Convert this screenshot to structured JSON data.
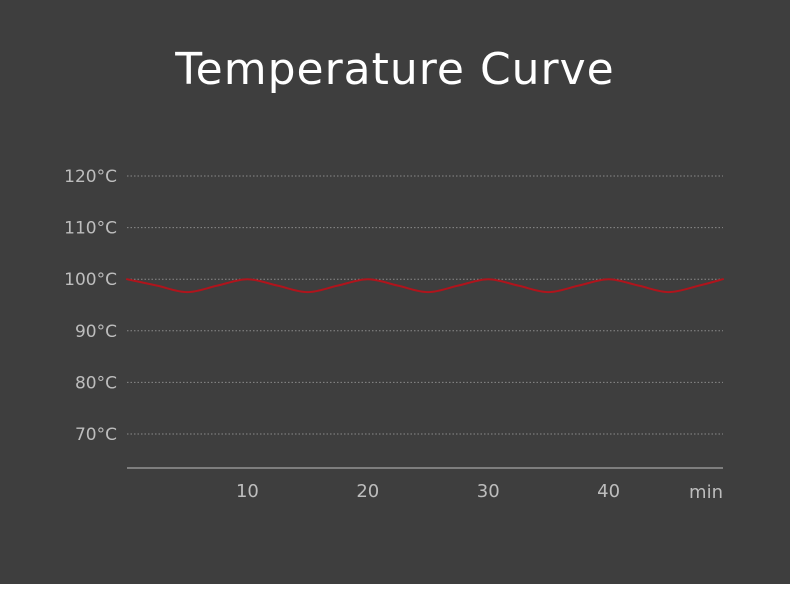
{
  "title": "Temperature Curve",
  "chart_data": {
    "type": "line",
    "title": "Temperature Curve",
    "xlabel": "min",
    "ylabel": "",
    "x_unit_label": "min",
    "y_tick_labels": [
      "120°C",
      "110°C",
      "100°C",
      "90°C",
      "80°C",
      "70°C"
    ],
    "y_ticks": [
      120,
      110,
      100,
      90,
      80,
      70
    ],
    "x_tick_labels": [
      "10",
      "20",
      "30",
      "40"
    ],
    "x_ticks": [
      10,
      20,
      30,
      40
    ],
    "xlim": [
      0,
      49.5
    ],
    "ylim": [
      63.5,
      120
    ],
    "grid": true,
    "series": [
      {
        "color": "#b0141c",
        "x": [
          0,
          2.5,
          5,
          7.5,
          10,
          12.5,
          15,
          17.5,
          20,
          22.5,
          25,
          27.5,
          30,
          32.5,
          35,
          37.5,
          40,
          42.5,
          45,
          47.5,
          49.5
        ],
        "y": [
          100,
          98.75,
          97.5,
          98.75,
          100,
          98.75,
          97.5,
          98.75,
          100,
          98.75,
          97.5,
          98.75,
          100,
          98.75,
          97.5,
          98.75,
          100,
          98.75,
          97.5,
          98.75,
          100
        ]
      }
    ]
  },
  "colors": {
    "background": "#3e3e3e",
    "gridline": "#8a8a8a",
    "axis": "#bdbdbd",
    "curve": "#b0141c",
    "title": "#ffffff",
    "tick_text": "#bdbdbd"
  }
}
